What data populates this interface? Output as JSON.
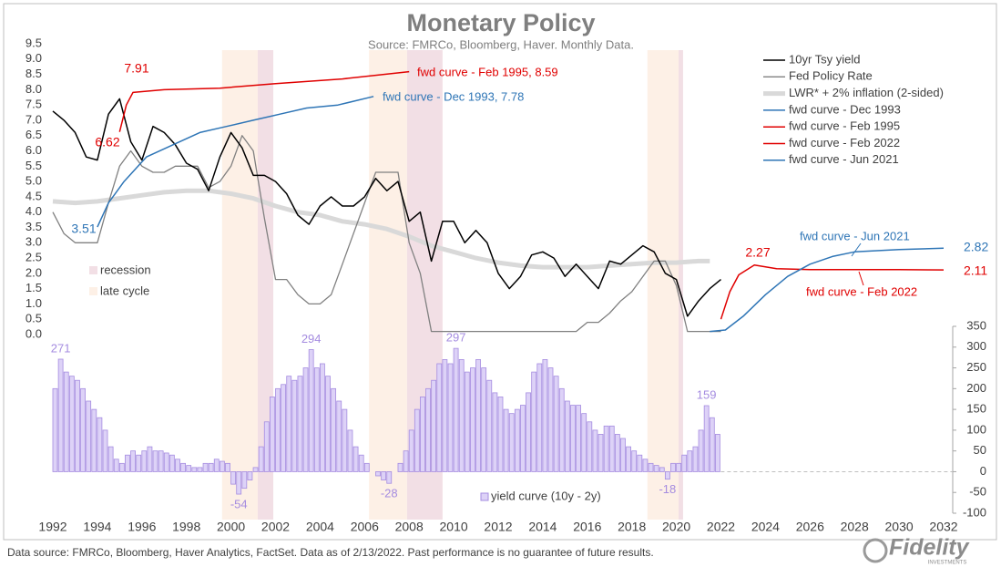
{
  "chart_data": {
    "type": "line",
    "title": "Monetary Policy",
    "subtitle": "Source: FMRCo, Bloomberg, Haver.  Monthly Data.",
    "xlim": [
      1992,
      2032
    ],
    "xticks": [
      1992,
      1994,
      1996,
      1998,
      2000,
      2002,
      2004,
      2006,
      2008,
      2010,
      2012,
      2014,
      2016,
      2018,
      2020,
      2022,
      2024,
      2026,
      2028,
      2030,
      2032
    ],
    "ylim": [
      0,
      9.5
    ],
    "yticks": [
      {
        "value": 0,
        "label": "0.0"
      },
      0.5,
      {
        "value": 1,
        "label": "1.0"
      },
      1.5,
      {
        "value": 2,
        "label": "2.0"
      },
      2.5,
      {
        "value": 3,
        "label": "3.0"
      },
      3.5,
      {
        "value": 4,
        "label": "4.0"
      },
      4.5,
      {
        "value": 5,
        "label": "5.0"
      },
      5.5,
      {
        "value": 6,
        "label": "6.0"
      },
      6.5,
      {
        "value": 7,
        "label": "7.0"
      },
      7.5,
      {
        "value": 8,
        "label": "8.0"
      },
      8.5,
      {
        "value": 9,
        "label": "9.0"
      },
      9.5
    ],
    "y2lim": [
      -100,
      350
    ],
    "y2ticks": [
      -100,
      -50,
      0,
      50,
      100,
      150,
      200,
      250,
      300,
      350
    ],
    "x": [
      1992,
      1992.5,
      1993,
      1993.5,
      1994,
      1994.5,
      1995,
      1995.5,
      1996,
      1996.5,
      1997,
      1997.5,
      1998,
      1998.5,
      1999,
      1999.5,
      2000,
      2000.5,
      2001,
      2001.5,
      2002,
      2002.5,
      2003,
      2003.5,
      2004,
      2004.5,
      2005,
      2005.5,
      2006,
      2006.5,
      2007,
      2007.5,
      2008,
      2008.5,
      2009,
      2009.5,
      2010,
      2010.5,
      2011,
      2011.5,
      2012,
      2012.5,
      2013,
      2013.5,
      2014,
      2014.5,
      2015,
      2015.5,
      2016,
      2016.5,
      2017,
      2017.5,
      2018,
      2018.5,
      2019,
      2019.5,
      2020,
      2020.5,
      2021,
      2021.5,
      2022
    ],
    "series": [
      {
        "name": "10yr Tsy yield",
        "color": "#000000",
        "width": 1.5,
        "values": [
          7.3,
          7.0,
          6.6,
          5.8,
          5.7,
          7.2,
          7.7,
          6.3,
          5.7,
          6.8,
          6.6,
          6.2,
          5.6,
          5.4,
          4.7,
          5.8,
          6.6,
          6.1,
          5.2,
          5.2,
          5.0,
          4.6,
          3.9,
          3.6,
          4.2,
          4.5,
          4.2,
          4.2,
          4.5,
          5.1,
          4.7,
          5.0,
          3.7,
          4.0,
          2.4,
          3.7,
          3.7,
          3.0,
          3.4,
          3.0,
          2.0,
          1.5,
          1.9,
          2.6,
          2.7,
          2.5,
          1.9,
          2.3,
          1.9,
          1.5,
          2.4,
          2.3,
          2.6,
          2.9,
          2.7,
          2.0,
          1.8,
          0.6,
          1.1,
          1.5,
          1.8
        ]
      },
      {
        "name": "Fed Policy Rate",
        "color": "#808080",
        "width": 1.3,
        "values": [
          4.0,
          3.3,
          3.0,
          3.0,
          3.0,
          4.3,
          5.5,
          6.0,
          5.5,
          5.3,
          5.3,
          5.5,
          5.5,
          5.5,
          4.8,
          5.0,
          5.5,
          6.5,
          6.0,
          3.8,
          1.8,
          1.8,
          1.3,
          1.0,
          1.0,
          1.3,
          2.3,
          3.3,
          4.3,
          5.3,
          5.3,
          5.3,
          3.0,
          2.0,
          0.1,
          0.1,
          0.1,
          0.1,
          0.1,
          0.1,
          0.1,
          0.1,
          0.1,
          0.1,
          0.1,
          0.1,
          0.1,
          0.1,
          0.4,
          0.4,
          0.7,
          1.1,
          1.4,
          1.9,
          2.4,
          2.4,
          1.6,
          0.1,
          0.1,
          0.1,
          0.1
        ]
      },
      {
        "name": "LWR* + 2% inflation (2-sided)",
        "color": "#d9d9d9",
        "width": 5,
        "x": [
          1992,
          1993,
          1994,
          1995,
          1996,
          1997,
          1998,
          1999,
          2000,
          2001,
          2002,
          2003,
          2004,
          2005,
          2006,
          2007,
          2008,
          2009,
          2010,
          2011,
          2012,
          2013,
          2014,
          2015,
          2016,
          2017,
          2018,
          2019,
          2020,
          2021,
          2021.5
        ],
        "values": [
          4.35,
          4.3,
          4.35,
          4.45,
          4.55,
          4.65,
          4.7,
          4.7,
          4.6,
          4.45,
          4.2,
          4.0,
          3.9,
          3.7,
          3.6,
          3.45,
          3.2,
          2.9,
          2.7,
          2.5,
          2.35,
          2.25,
          2.2,
          2.2,
          2.2,
          2.25,
          2.3,
          2.35,
          2.35,
          2.4,
          2.4
        ]
      },
      {
        "name": "fwd curve - Dec 1993",
        "color": "#2e75b6",
        "width": 1.5,
        "x": [
          1994,
          1994.5,
          1995.2,
          1996.2,
          1997.4,
          1998.6,
          1999.8,
          2001,
          2002.2,
          2003.4,
          2004.8,
          2006.4
        ],
        "values": [
          3.51,
          4.3,
          5.0,
          5.8,
          6.2,
          6.6,
          6.8,
          7.0,
          7.2,
          7.4,
          7.5,
          7.78
        ]
      },
      {
        "name": "fwd curve - Feb 1995",
        "color": "#e00000",
        "width": 1.5,
        "x": [
          1995,
          1995.3,
          1995.6,
          1997,
          1999.5,
          2002,
          2005,
          2008
        ],
        "values": [
          6.62,
          7.5,
          7.91,
          8.0,
          8.05,
          8.2,
          8.35,
          8.59
        ]
      },
      {
        "name": "fwd curve - Feb 2022",
        "color": "#e00000",
        "width": 1.5,
        "x": [
          2022,
          2022.4,
          2022.8,
          2023.5,
          2024.5,
          2026,
          2028,
          2030,
          2032
        ],
        "values": [
          0.5,
          1.4,
          1.95,
          2.27,
          2.15,
          2.12,
          2.12,
          2.12,
          2.11
        ]
      },
      {
        "name": "fwd curve - Jun 2021",
        "color": "#2e75b6",
        "width": 1.5,
        "x": [
          2021.5,
          2022.2,
          2023,
          2024,
          2025,
          2026,
          2027,
          2028,
          2030,
          2032
        ],
        "values": [
          0.1,
          0.15,
          0.6,
          1.3,
          1.9,
          2.3,
          2.55,
          2.7,
          2.78,
          2.82
        ]
      },
      {
        "name": "yield curve (10y - 2y)",
        "type": "bar",
        "axis": "y2",
        "color": "#ddd2f7",
        "edge": "#a58ce0",
        "x": [
          1992,
          1992.25,
          1992.5,
          1992.75,
          1993,
          1993.25,
          1993.5,
          1993.75,
          1994,
          1994.25,
          1994.5,
          1994.75,
          1995,
          1995.25,
          1995.5,
          1995.75,
          1996,
          1996.25,
          1996.5,
          1996.75,
          1997,
          1997.25,
          1997.5,
          1997.75,
          1998,
          1998.25,
          1998.5,
          1998.75,
          1999,
          1999.25,
          1999.5,
          1999.75,
          2000,
          2000.25,
          2000.5,
          2000.75,
          2001,
          2001.25,
          2001.5,
          2001.75,
          2002,
          2002.25,
          2002.5,
          2002.75,
          2003,
          2003.25,
          2003.5,
          2003.75,
          2004,
          2004.25,
          2004.5,
          2004.75,
          2005,
          2005.25,
          2005.5,
          2005.75,
          2006,
          2006.25,
          2006.5,
          2006.75,
          2007,
          2007.25,
          2007.5,
          2007.75,
          2008,
          2008.25,
          2008.5,
          2008.75,
          2009,
          2009.25,
          2009.5,
          2009.75,
          2010,
          2010.25,
          2010.5,
          2010.75,
          2011,
          2011.25,
          2011.5,
          2011.75,
          2012,
          2012.25,
          2012.5,
          2012.75,
          2013,
          2013.25,
          2013.5,
          2013.75,
          2014,
          2014.25,
          2014.5,
          2014.75,
          2015,
          2015.25,
          2015.5,
          2015.75,
          2016,
          2016.25,
          2016.5,
          2016.75,
          2017,
          2017.25,
          2017.5,
          2017.75,
          2018,
          2018.25,
          2018.5,
          2018.75,
          2019,
          2019.25,
          2019.5,
          2019.75,
          2020,
          2020.25,
          2020.5,
          2020.75,
          2021,
          2021.25,
          2021.5,
          2021.75
        ],
        "values": [
          200,
          271,
          240,
          230,
          220,
          200,
          170,
          150,
          130,
          100,
          60,
          30,
          20,
          40,
          50,
          40,
          50,
          60,
          50,
          50,
          45,
          40,
          30,
          20,
          15,
          10,
          10,
          20,
          20,
          30,
          25,
          20,
          -30,
          -54,
          -40,
          -20,
          10,
          60,
          120,
          180,
          200,
          210,
          230,
          220,
          230,
          250,
          294,
          250,
          260,
          230,
          200,
          170,
          150,
          100,
          60,
          40,
          20,
          0,
          -10,
          -20,
          -28,
          0,
          20,
          50,
          100,
          150,
          180,
          200,
          220,
          260,
          270,
          260,
          297,
          270,
          240,
          250,
          270,
          250,
          220,
          190,
          180,
          150,
          140,
          150,
          160,
          190,
          240,
          260,
          270,
          250,
          230,
          200,
          170,
          160,
          160,
          140,
          120,
          100,
          90,
          110,
          110,
          90,
          80,
          60,
          50,
          40,
          30,
          20,
          15,
          10,
          -18,
          20,
          20,
          40,
          50,
          60,
          100,
          159,
          130,
          90
        ]
      }
    ],
    "bands": [
      {
        "name": "recession",
        "color": "#f2dfe5",
        "ranges": [
          [
            2001.2,
            2001.9
          ],
          [
            2007.9,
            2009.5
          ],
          [
            2020.1,
            2020.3
          ]
        ]
      },
      {
        "name": "late cycle",
        "color": "#fdf0e6",
        "ranges": [
          [
            1999.6,
            2001.2
          ],
          [
            2006.2,
            2007.9
          ],
          [
            2018.7,
            2020.1
          ]
        ]
      }
    ],
    "annotations": [
      {
        "text": "fwd curve - Feb 1995, 8.59",
        "color": "#e00000"
      },
      {
        "text": "fwd curve - Dec 1993, 7.78",
        "color": "#2e75b6"
      },
      {
        "text": "fwd curve - Jun 2021",
        "color": "#2e75b6"
      },
      {
        "text": "fwd curve - Feb 2022",
        "color": "#e00000"
      }
    ]
  },
  "footer": "Data source: FMRCo, Bloomberg, Haver Analytics, FactSet. Data as of 2/13/2022. Past performance is no guarantee of future results.",
  "logo": {
    "name": "Fidelity",
    "sub": "INVESTMENTS"
  }
}
